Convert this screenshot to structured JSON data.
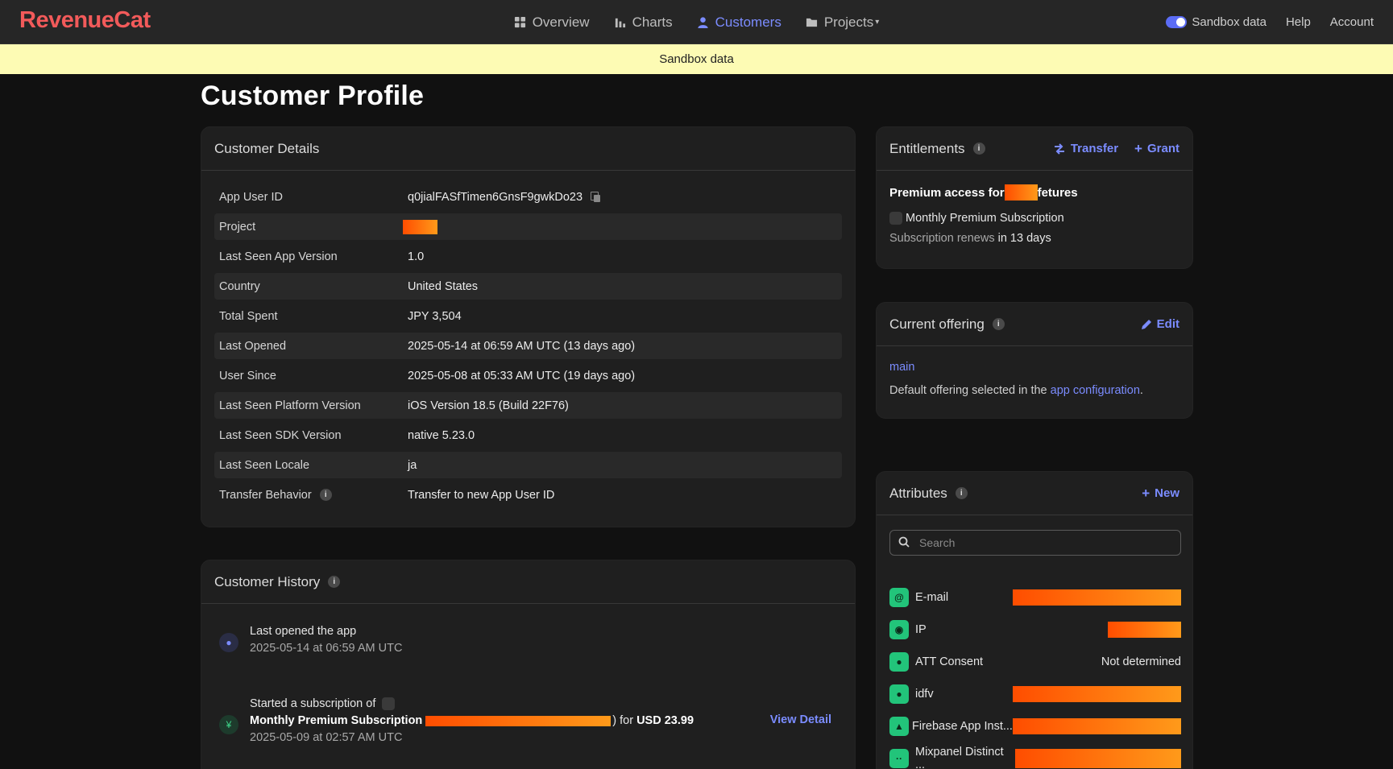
{
  "app": {
    "logo": "RevenueCat"
  },
  "nav": {
    "items": [
      {
        "label": "Overview",
        "icon": "grid-icon",
        "active": false
      },
      {
        "label": "Charts",
        "icon": "bar-chart-icon",
        "active": false
      },
      {
        "label": "Customers",
        "icon": "person-icon",
        "active": true
      },
      {
        "label": "Projects",
        "icon": "folder-icon",
        "active": false,
        "caret": "▾"
      }
    ],
    "right": {
      "sandbox_label": "Sandbox data",
      "help": "Help",
      "account": "Account"
    }
  },
  "banner": {
    "text": "Sandbox data"
  },
  "page": {
    "title": "Customer Profile"
  },
  "details": {
    "title": "Customer Details",
    "rows": [
      {
        "key": "App User ID",
        "value": "q0jialFASfTimen6GnsF9gwkDo23"
      },
      {
        "key": "Project",
        "value": ""
      },
      {
        "key": "Last Seen App Version",
        "value": "1.0"
      },
      {
        "key": "Country",
        "value": "United States"
      },
      {
        "key": "Total Spent",
        "value": "JPY 3,504"
      },
      {
        "key": "Last Opened",
        "value": "2025-05-14 at 06:59 AM UTC (13 days ago)"
      },
      {
        "key": "User Since",
        "value": "2025-05-08 at 05:33 AM UTC (19 days ago)"
      },
      {
        "key": "Last Seen Platform Version",
        "value": "iOS Version 18.5 (Build 22F76)"
      },
      {
        "key": "Last Seen SDK Version",
        "value": "native 5.23.0"
      },
      {
        "key": "Last Seen Locale",
        "value": "ja"
      },
      {
        "key": "Transfer Behavior",
        "value": "Transfer to new App User ID"
      }
    ]
  },
  "history": {
    "title": "Customer History",
    "items": [
      {
        "title": "Last opened the app",
        "time": "2025-05-14 at 06:59 AM UTC"
      },
      {
        "prefix": "Started a subscription of",
        "product": "Monthly Premium Subscription",
        "amount_prefix": ") for",
        "amount": "USD 23.99",
        "time": "2025-05-09 at 02:57 AM UTC",
        "action": "View Detail"
      }
    ]
  },
  "entitlements": {
    "title": "Entitlements",
    "transfer": "Transfer",
    "grant": "Grant",
    "name_prefix": "Premium access for",
    "name_suffix": "fetures",
    "product": "Monthly Premium Subscription",
    "renew_label": "Subscription renews",
    "renew_value": "in 13 days"
  },
  "offering": {
    "title": "Current offering",
    "edit": "Edit",
    "id": "main",
    "desc_prefix": "Default offering selected in the",
    "desc_link": "app configuration",
    "desc_suffix": "."
  },
  "attributes": {
    "title": "Attributes",
    "new": "New",
    "search_placeholder": "Search",
    "items": [
      {
        "label": "E-mail",
        "icon": "at-icon",
        "value": ""
      },
      {
        "label": "IP",
        "icon": "globe-icon",
        "value": ""
      },
      {
        "label": "ATT Consent",
        "icon": "apple-icon",
        "value": "Not determined"
      },
      {
        "label": "idfv",
        "icon": "apple-icon",
        "value": ""
      },
      {
        "label": "Firebase App Inst...",
        "icon": "firebase-icon",
        "value": ""
      },
      {
        "label": "Mixpanel Distinct ...",
        "icon": "mixpanel-icon",
        "value": ""
      }
    ]
  },
  "colors": {
    "accent": "#7b8cff",
    "brand": "#f25a5a",
    "banner": "#fdfbb4",
    "attr_icon": "#22c47a"
  }
}
